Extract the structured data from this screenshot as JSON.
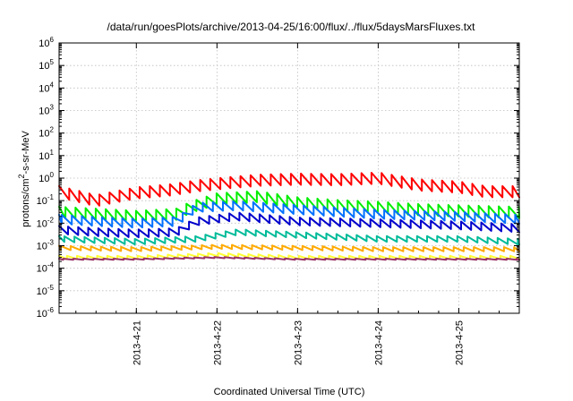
{
  "chart_data": {
    "type": "line",
    "title": "/data/run/goesPlots/archive/2013-04-25/16:00/flux/../flux/5daysMarsFluxes.txt",
    "xlabel": "Coordinated Universal Time (UTC)",
    "ylabel": {
      "prefix": "protons/cm",
      "sup": "2",
      "suffix": "-s-sr-MeV"
    },
    "yscale": "log",
    "ylim": [
      1e-06,
      1000000.0
    ],
    "xlim": [
      "2013-04-20T01:00",
      "2013-04-25T18:00"
    ],
    "grid": true,
    "legend": "none",
    "x_ticks": [
      "2013-4-21",
      "2013-4-22",
      "2013-4-23",
      "2013-4-24",
      "2013-4-25"
    ],
    "x_tick_positions": [
      "2013-04-21T00:00",
      "2013-04-22T00:00",
      "2013-04-23T00:00",
      "2013-04-24T00:00",
      "2013-04-25T00:00"
    ],
    "y_ticks": [
      {
        "value": 1e-06,
        "base": "10",
        "exp": "-6"
      },
      {
        "value": 1e-05,
        "base": "10",
        "exp": "-5"
      },
      {
        "value": 0.0001,
        "base": "10",
        "exp": "-4"
      },
      {
        "value": 0.001,
        "base": "10",
        "exp": "-3"
      },
      {
        "value": 0.01,
        "base": "10",
        "exp": "-2"
      },
      {
        "value": 0.1,
        "base": "10",
        "exp": "-1"
      },
      {
        "value": 1,
        "base": "10",
        "exp": "0"
      },
      {
        "value": 10,
        "base": "10",
        "exp": "1"
      },
      {
        "value": 100,
        "base": "10",
        "exp": "2"
      },
      {
        "value": 1000,
        "base": "10",
        "exp": "3"
      },
      {
        "value": 10000,
        "base": "10",
        "exp": "4"
      },
      {
        "value": 100000,
        "base": "10",
        "exp": "5"
      },
      {
        "value": 1000000,
        "base": "10",
        "exp": "6"
      }
    ],
    "series": [
      {
        "color": "#ff0000",
        "sawtooth_drop": 0.5,
        "x": [
          "2013-04-20T01:00",
          "2013-04-20T12:00",
          "2013-04-21T00:00",
          "2013-04-21T10:00",
          "2013-04-21T18:00",
          "2013-04-22T02:00",
          "2013-04-22T12:00",
          "2013-04-23T00:00",
          "2013-04-23T12:00",
          "2013-04-24T00:00",
          "2013-04-24T12:00",
          "2013-04-25T00:00",
          "2013-04-25T08:00",
          "2013-04-25T18:00"
        ],
        "y": [
          0.25,
          0.1,
          0.22,
          0.3,
          0.45,
          0.6,
          0.8,
          0.9,
          0.85,
          1.0,
          0.5,
          0.4,
          0.25,
          0.25
        ]
      },
      {
        "color": "#00ee00",
        "sawtooth_drop": 0.5,
        "x": [
          "2013-04-20T01:00",
          "2013-04-20T12:00",
          "2013-04-21T00:00",
          "2013-04-21T12:00",
          "2013-04-21T16:00",
          "2013-04-22T00:00",
          "2013-04-22T12:00",
          "2013-04-23T00:00",
          "2013-04-23T12:00",
          "2013-04-24T00:00",
          "2013-04-24T12:00",
          "2013-04-25T00:00",
          "2013-04-25T18:00"
        ],
        "y": [
          0.03,
          0.025,
          0.02,
          0.025,
          0.05,
          0.12,
          0.15,
          0.08,
          0.06,
          0.05,
          0.04,
          0.035,
          0.03
        ]
      },
      {
        "color": "#0070ff",
        "sawtooth_drop": 0.4,
        "x": [
          "2013-04-20T01:00",
          "2013-04-20T12:00",
          "2013-04-21T00:00",
          "2013-04-21T12:00",
          "2013-04-21T18:00",
          "2013-04-22T06:00",
          "2013-04-23T00:00",
          "2013-04-24T00:00",
          "2013-04-25T00:00",
          "2013-04-25T18:00"
        ],
        "y": [
          0.015,
          0.012,
          0.01,
          0.012,
          0.05,
          0.06,
          0.04,
          0.025,
          0.02,
          0.015
        ]
      },
      {
        "color": "#0000cc",
        "sawtooth_drop": 0.35,
        "x": [
          "2013-04-20T01:00",
          "2013-04-20T12:00",
          "2013-04-21T00:00",
          "2013-04-21T12:00",
          "2013-04-21T18:00",
          "2013-04-22T06:00",
          "2013-04-23T00:00",
          "2013-04-24T00:00",
          "2013-04-25T00:00",
          "2013-04-25T18:00"
        ],
        "y": [
          0.005,
          0.004,
          0.0035,
          0.004,
          0.012,
          0.02,
          0.012,
          0.01,
          0.008,
          0.006
        ]
      },
      {
        "color": "#00bb99",
        "sawtooth_drop": 0.25,
        "x": [
          "2013-04-20T01:00",
          "2013-04-21T00:00",
          "2013-04-21T18:00",
          "2013-04-22T06:00",
          "2013-04-23T00:00",
          "2013-04-24T00:00",
          "2013-04-25T00:00",
          "2013-04-25T18:00"
        ],
        "y": [
          0.002,
          0.0015,
          0.002,
          0.004,
          0.003,
          0.002,
          0.002,
          0.0015
        ]
      },
      {
        "color": "#ffaa00",
        "sawtooth_drop": 0.18,
        "x": [
          "2013-04-20T01:00",
          "2013-04-21T00:00",
          "2013-04-22T00:00",
          "2013-04-23T00:00",
          "2013-04-24T00:00",
          "2013-04-25T00:00",
          "2013-04-25T18:00"
        ],
        "y": [
          0.0008,
          0.0007,
          0.0009,
          0.0008,
          0.0007,
          0.0007,
          0.0007
        ]
      },
      {
        "color": "#ffff33",
        "sawtooth_drop": 0.15,
        "x": [
          "2013-04-20T01:00",
          "2013-04-21T00:00",
          "2013-04-22T00:00",
          "2013-04-23T00:00",
          "2013-04-24T00:00",
          "2013-04-25T00:00",
          "2013-04-25T18:00"
        ],
        "y": [
          0.0003,
          0.0003,
          0.0004,
          0.0003,
          0.0003,
          0.0003,
          0.0003
        ]
      },
      {
        "color": "#993366",
        "sawtooth_drop": 0.05,
        "x": [
          "2013-04-20T01:00",
          "2013-04-21T00:00",
          "2013-04-22T00:00",
          "2013-04-23T00:00",
          "2013-04-24T00:00",
          "2013-04-25T00:00",
          "2013-04-25T18:00"
        ],
        "y": [
          0.00025,
          0.00025,
          0.0003,
          0.00025,
          0.00025,
          0.00025,
          0.00025
        ]
      }
    ]
  }
}
